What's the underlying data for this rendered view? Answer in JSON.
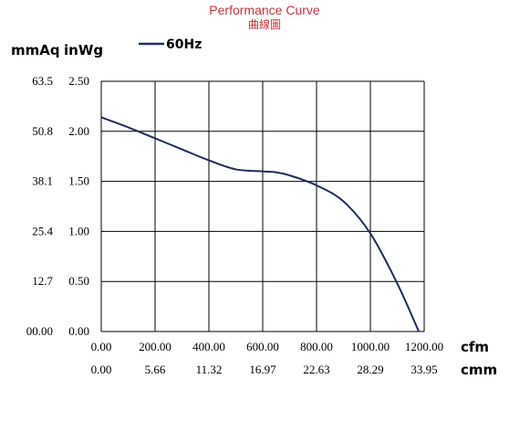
{
  "chart_data": {
    "type": "line",
    "title": "Performance Curve",
    "subtitle": "曲線圖",
    "y_left_unit": "mmAq",
    "y_right_unit": "inWg",
    "x_unit_primary": "cfm",
    "x_unit_secondary": "cmm",
    "xlim": [
      0,
      1200
    ],
    "ylim": [
      0,
      2.5
    ],
    "grid": true,
    "legend_position": "top",
    "x_ticks": [
      "0.00",
      "200.00",
      "400.00",
      "600.00",
      "800.00",
      "1000.00",
      "1200.00"
    ],
    "x_ticks_secondary": [
      "0.00",
      "5.66",
      "11.32",
      "16.97",
      "22.63",
      "28.29",
      "33.95"
    ],
    "y_ticks_inwg": [
      "0.00",
      "0.50",
      "1.00",
      "1.50",
      "2.00",
      "2.50"
    ],
    "y_ticks_mmaq": [
      "00.00",
      "12.7",
      "25.4",
      "38.1",
      "50.8",
      "63.5"
    ],
    "series": [
      {
        "name": "60Hz",
        "color": "#1f2d5c",
        "x": [
          0,
          100,
          200,
          300,
          400,
          500,
          600,
          650,
          700,
          800,
          900,
          1000,
          1100,
          1180
        ],
        "y": [
          2.14,
          2.04,
          1.93,
          1.82,
          1.71,
          1.62,
          1.6,
          1.59,
          1.56,
          1.46,
          1.3,
          0.98,
          0.48,
          0.0
        ]
      }
    ]
  }
}
